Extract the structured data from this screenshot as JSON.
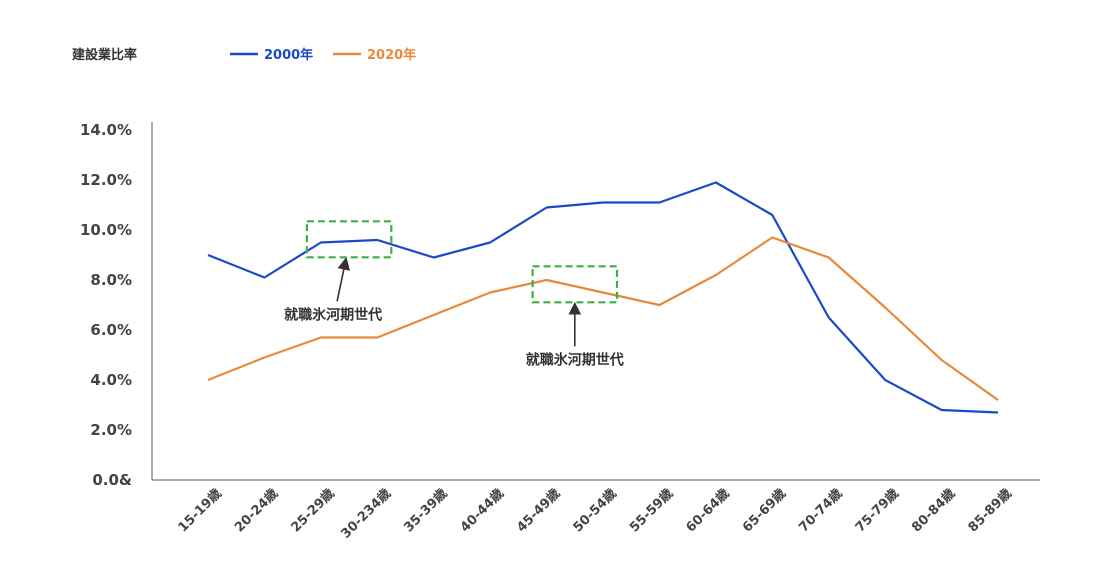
{
  "chart_data": {
    "type": "line",
    "ylabel": "建設業比率",
    "categories": [
      "15-19歳",
      "20-24歳",
      "25-29歳",
      "30-234歳",
      "35-39歳",
      "40-44歳",
      "45-49歳",
      "50-54歳",
      "55-59歳",
      "60-64歳",
      "65-69歳",
      "70-74歳",
      "75-79歳",
      "80-84歳",
      "85-89歳"
    ],
    "y_ticks": [
      "0.0&",
      "2.0%",
      "4.0%",
      "6.0%",
      "8.0%",
      "10.0%",
      "12.0%",
      "14.0%"
    ],
    "ylim": [
      0,
      14
    ],
    "grid": false,
    "legend_position": "top",
    "series": [
      {
        "name": "2000年",
        "color": "#1a49c9",
        "values": [
          9.0,
          8.1,
          9.5,
          9.6,
          8.9,
          9.5,
          10.9,
          11.1,
          11.1,
          11.9,
          10.6,
          6.5,
          4.0,
          2.8,
          2.7
        ]
      },
      {
        "name": "2020年",
        "color": "#e8893a",
        "values": [
          4.0,
          4.9,
          5.7,
          5.7,
          6.6,
          7.5,
          8.0,
          7.5,
          7.0,
          8.2,
          9.7,
          8.9,
          6.9,
          4.8,
          3.2
        ]
      }
    ],
    "annotations": [
      {
        "text": "就職氷河期世代",
        "series": "2000年",
        "categories": [
          "25-29歳",
          "30-234歳"
        ]
      },
      {
        "text": "就職氷河期世代",
        "series": "2020年",
        "categories": [
          "45-49歳",
          "50-54歳"
        ]
      }
    ],
    "annotation_box_color": "#3cb043",
    "axis_color": "#555555"
  }
}
